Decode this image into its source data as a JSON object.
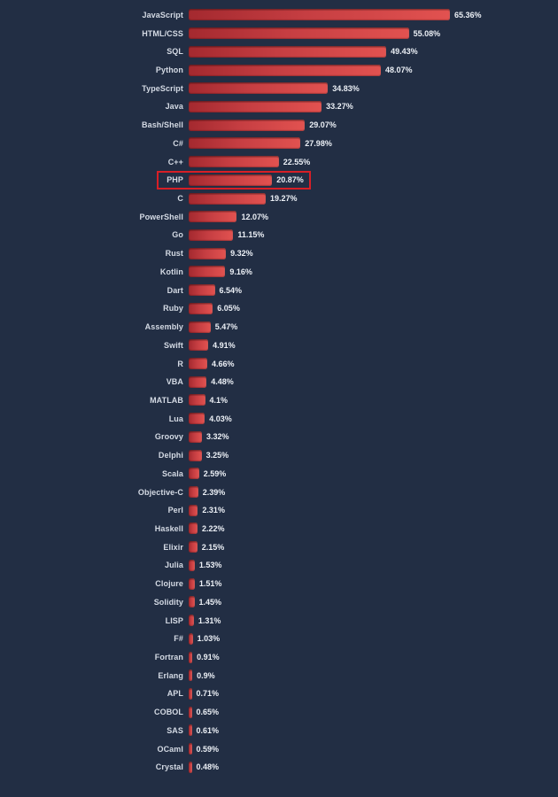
{
  "chart_data": {
    "type": "bar",
    "orientation": "horizontal",
    "title": "",
    "xlabel": "",
    "ylabel": "",
    "xlim": [
      0,
      70
    ],
    "grid": false,
    "legend": "none",
    "value_suffix": "%",
    "categories": [
      "JavaScript",
      "HTML/CSS",
      "SQL",
      "Python",
      "TypeScript",
      "Java",
      "Bash/Shell",
      "C#",
      "C++",
      "PHP",
      "C",
      "PowerShell",
      "Go",
      "Rust",
      "Kotlin",
      "Dart",
      "Ruby",
      "Assembly",
      "Swift",
      "R",
      "VBA",
      "MATLAB",
      "Lua",
      "Groovy",
      "Delphi",
      "Scala",
      "Objective-C",
      "Perl",
      "Haskell",
      "Elixir",
      "Julia",
      "Clojure",
      "Solidity",
      "LISP",
      "F#",
      "Fortran",
      "Erlang",
      "APL",
      "COBOL",
      "SAS",
      "OCaml",
      "Crystal"
    ],
    "values": [
      65.36,
      55.08,
      49.43,
      48.07,
      34.83,
      33.27,
      29.07,
      27.98,
      22.55,
      20.87,
      19.27,
      12.07,
      11.15,
      9.32,
      9.16,
      6.54,
      6.05,
      5.47,
      4.91,
      4.66,
      4.48,
      4.1,
      4.03,
      3.32,
      3.25,
      2.59,
      2.39,
      2.31,
      2.22,
      2.15,
      1.53,
      1.51,
      1.45,
      1.31,
      1.03,
      0.91,
      0.9,
      0.71,
      0.65,
      0.61,
      0.59,
      0.48
    ],
    "highlighted_category": "PHP",
    "colors": {
      "background": "#222e44",
      "bar_gradient_start": "#a4292f",
      "bar_gradient_end": "#e25250",
      "label_text": "#d4dae4",
      "value_text": "#ecf0f6",
      "highlight_border": "#d71f26"
    }
  }
}
